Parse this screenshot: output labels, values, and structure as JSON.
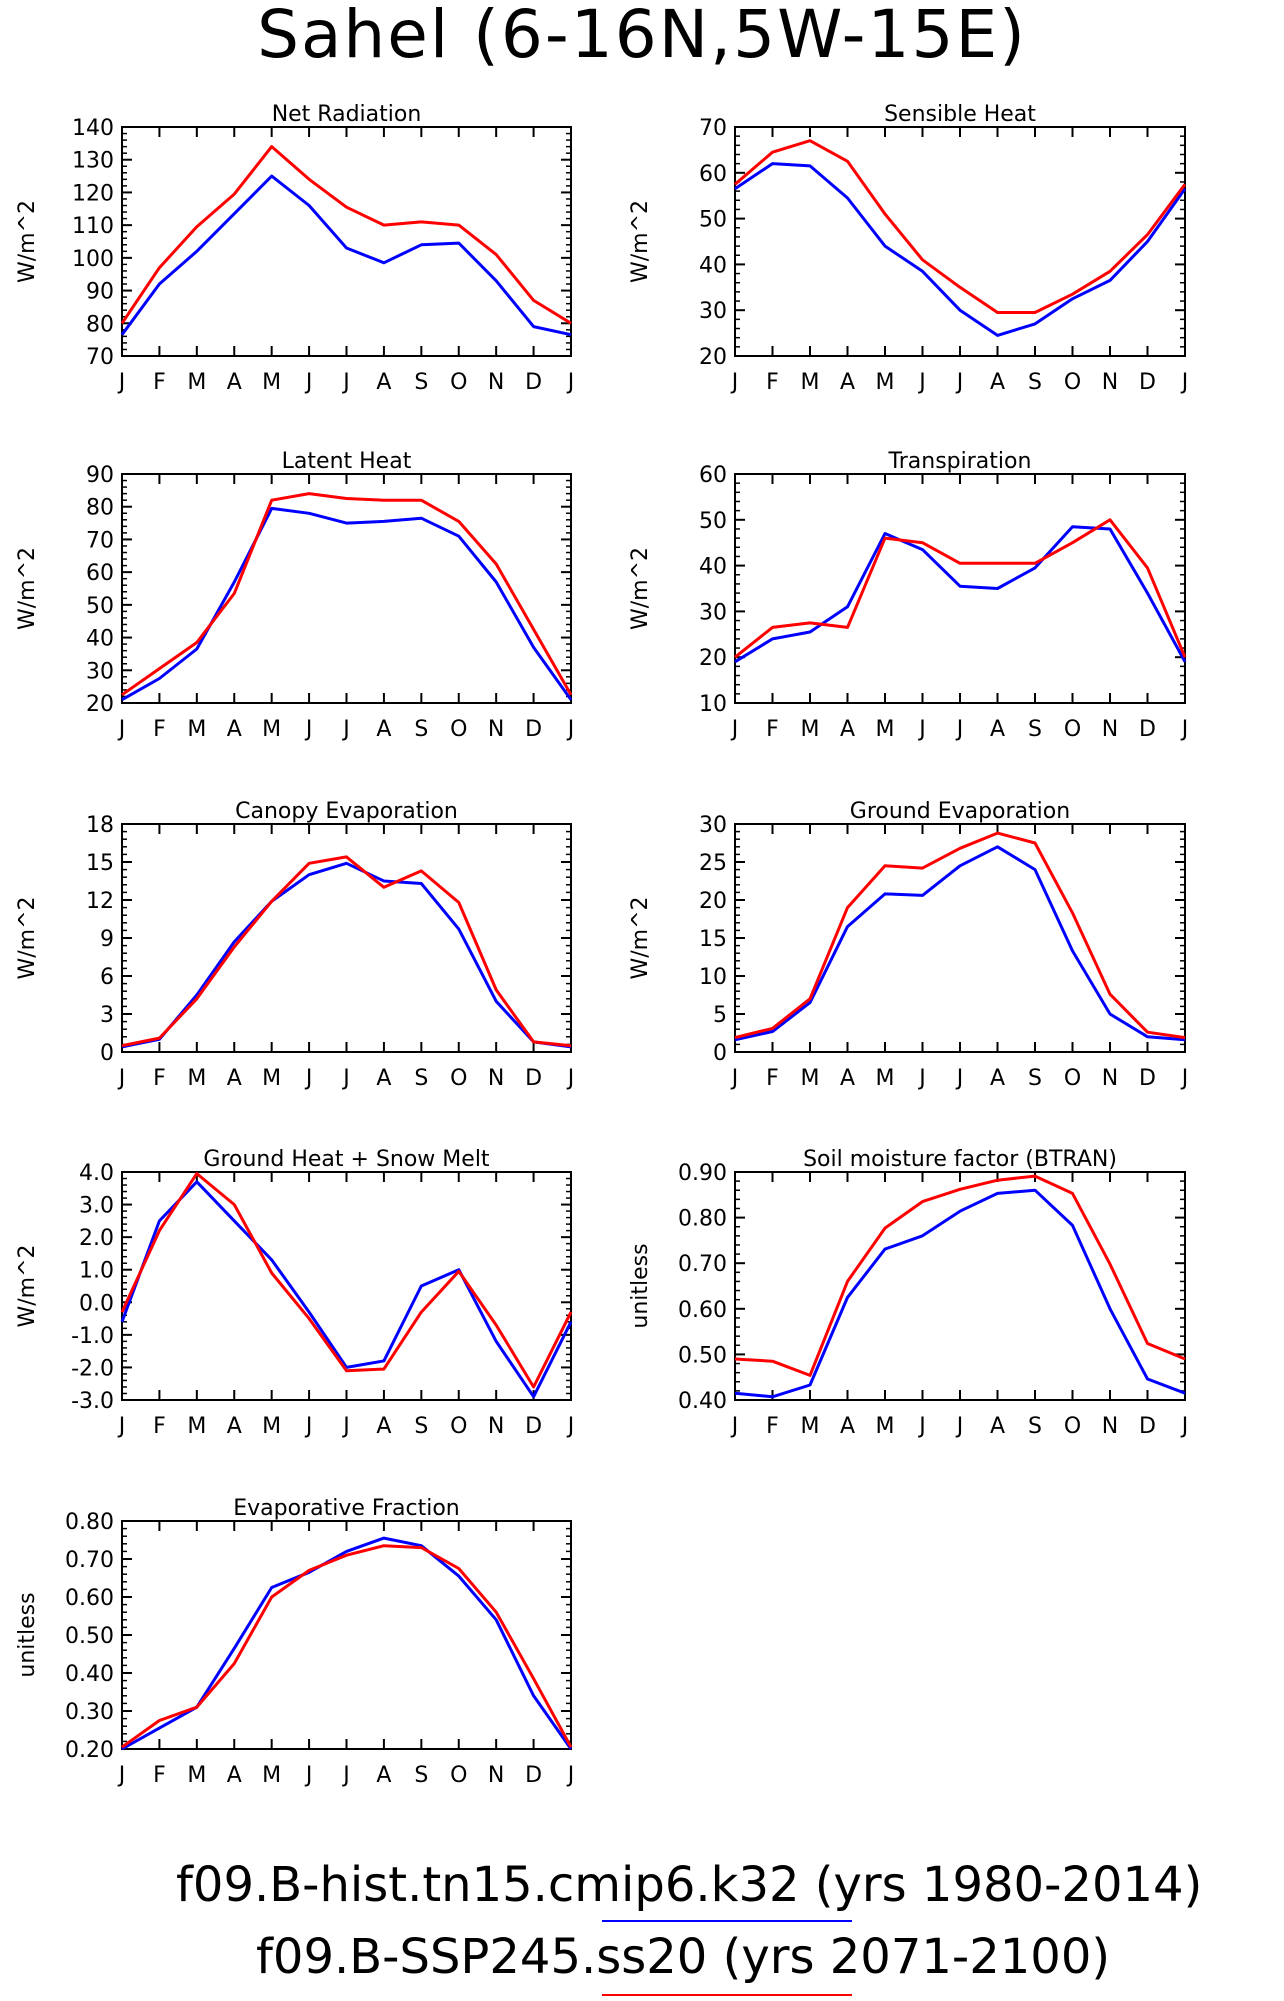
{
  "title": "Sahel (6-16N,5W-15E)",
  "months": [
    "J",
    "F",
    "M",
    "A",
    "M",
    "J",
    "J",
    "A",
    "S",
    "O",
    "N",
    "D",
    "J"
  ],
  "colors": {
    "hist": "#0000ff",
    "ssp": "#ff0000"
  },
  "legend": [
    {
      "name": "f09.B-hist.tn15.cmip6.k32",
      "period": "(yrs 1980-2014)",
      "color": "#0000ff"
    },
    {
      "name": "f09.B-SSP245.ss20",
      "period": "(yrs 2071-2100)",
      "color": "#ff0000"
    }
  ],
  "chart_data": [
    {
      "type": "line",
      "title": "Net Radiation",
      "ylabel": "W/m^2",
      "ylim": [
        70,
        140
      ],
      "yticks": [
        "70",
        "80",
        "90",
        "100",
        "110",
        "120",
        "130",
        "140"
      ],
      "series": [
        {
          "name": "f09.B-hist.tn15.cmip6.k32",
          "values": [
            76.5,
            92,
            102,
            113.5,
            125,
            116,
            103,
            98.5,
            104,
            104.5,
            93,
            79,
            76.5
          ]
        },
        {
          "name": "f09.B-SSP245.ss20",
          "values": [
            80,
            97,
            109.5,
            119.5,
            134,
            124,
            115.5,
            110,
            111,
            110,
            101,
            87,
            80
          ]
        }
      ]
    },
    {
      "type": "line",
      "title": "Sensible Heat",
      "ylabel": "W/m^2",
      "ylim": [
        20,
        70
      ],
      "yticks": [
        "20",
        "30",
        "40",
        "50",
        "60",
        "70"
      ],
      "series": [
        {
          "name": "f09.B-hist.tn15.cmip6.k32",
          "values": [
            56.5,
            62,
            61.5,
            54.5,
            44,
            38.5,
            30,
            24.5,
            27,
            32.5,
            36.5,
            45,
            56.5
          ]
        },
        {
          "name": "f09.B-SSP245.ss20",
          "values": [
            57.5,
            64.5,
            67,
            62.5,
            51,
            41,
            35,
            29.5,
            29.5,
            33.5,
            38.5,
            46.5,
            57.5
          ]
        }
      ]
    },
    {
      "type": "line",
      "title": "Latent Heat",
      "ylabel": "W/m^2",
      "ylim": [
        20,
        90
      ],
      "yticks": [
        "20",
        "30",
        "40",
        "50",
        "60",
        "70",
        "80",
        "90"
      ],
      "series": [
        {
          "name": "f09.B-hist.tn15.cmip6.k32",
          "values": [
            21,
            27.5,
            36.5,
            57,
            79.5,
            78,
            75,
            75.5,
            76.5,
            71,
            57,
            37,
            21
          ]
        },
        {
          "name": "f09.B-SSP245.ss20",
          "values": [
            22.5,
            30.5,
            38.5,
            53.5,
            82,
            84,
            82.5,
            82,
            82,
            75.5,
            62.5,
            42.5,
            22.5
          ]
        }
      ]
    },
    {
      "type": "line",
      "title": "Transpiration",
      "ylabel": "W/m^2",
      "ylim": [
        10,
        60
      ],
      "yticks": [
        "10",
        "20",
        "30",
        "40",
        "50",
        "60"
      ],
      "series": [
        {
          "name": "f09.B-hist.tn15.cmip6.k32",
          "values": [
            19,
            24,
            25.5,
            31,
            47,
            43.5,
            35.5,
            35,
            39.5,
            48.5,
            48,
            34,
            19
          ]
        },
        {
          "name": "f09.B-SSP245.ss20",
          "values": [
            20,
            26.5,
            27.5,
            26.5,
            46,
            45,
            40.5,
            40.5,
            40.5,
            45,
            50,
            39.5,
            20
          ]
        }
      ]
    },
    {
      "type": "line",
      "title": "Canopy Evaporation",
      "ylabel": "W/m^2",
      "ylim": [
        0,
        18
      ],
      "yticks": [
        "0",
        "3",
        "6",
        "9",
        "12",
        "15",
        "18"
      ],
      "series": [
        {
          "name": "f09.B-hist.tn15.cmip6.k32",
          "values": [
            0.4,
            1,
            4.5,
            8.7,
            11.9,
            14,
            14.9,
            13.5,
            13.3,
            9.7,
            4,
            0.8,
            0.4
          ]
        },
        {
          "name": "f09.B-SSP245.ss20",
          "values": [
            0.5,
            1.1,
            4.2,
            8.3,
            11.9,
            14.9,
            15.4,
            13,
            14.3,
            11.8,
            4.9,
            0.8,
            0.5
          ]
        }
      ]
    },
    {
      "type": "line",
      "title": "Ground Evaporation",
      "ylabel": "W/m^2",
      "ylim": [
        0,
        30
      ],
      "yticks": [
        "0",
        "5",
        "10",
        "15",
        "20",
        "25",
        "30"
      ],
      "series": [
        {
          "name": "f09.B-hist.tn15.cmip6.k32",
          "values": [
            1.6,
            2.7,
            6.5,
            16.5,
            20.8,
            20.6,
            24.5,
            27,
            24,
            13.3,
            5,
            2,
            1.6
          ]
        },
        {
          "name": "f09.B-SSP245.ss20",
          "values": [
            1.9,
            3.1,
            7,
            19,
            24.5,
            24.2,
            26.8,
            28.8,
            27.5,
            18.3,
            7.6,
            2.6,
            1.9
          ]
        }
      ]
    },
    {
      "type": "line",
      "title": "Ground Heat + Snow Melt",
      "ylabel": "W/m^2",
      "ylim": [
        -3,
        4
      ],
      "yticks": [
        "-3.0",
        "-2.0",
        "-1.0",
        "0.0",
        "1.0",
        "2.0",
        "3.0",
        "4.0"
      ],
      "series": [
        {
          "name": "f09.B-hist.tn15.cmip6.k32",
          "values": [
            -0.6,
            2.5,
            3.7,
            2.5,
            1.3,
            -0.3,
            -2,
            -1.8,
            0.5,
            1,
            -1.2,
            -2.9,
            -0.6
          ]
        },
        {
          "name": "f09.B-SSP245.ss20",
          "values": [
            -0.3,
            2.2,
            3.95,
            3,
            0.9,
            -0.5,
            -2.1,
            -2.05,
            -0.3,
            0.95,
            -0.7,
            -2.6,
            -0.3
          ]
        }
      ]
    },
    {
      "type": "line",
      "title": "Soil moisture factor (BTRAN)",
      "ylabel": "unitless",
      "ylim": [
        0.4,
        0.9
      ],
      "yticks": [
        "0.40",
        "0.50",
        "0.60",
        "0.70",
        "0.80",
        "0.90"
      ],
      "series": [
        {
          "name": "f09.B-hist.tn15.cmip6.k32",
          "values": [
            0.415,
            0.407,
            0.433,
            0.625,
            0.731,
            0.76,
            0.814,
            0.853,
            0.86,
            0.783,
            0.6,
            0.446,
            0.415
          ]
        },
        {
          "name": "f09.B-SSP245.ss20",
          "values": [
            0.49,
            0.485,
            0.454,
            0.66,
            0.777,
            0.835,
            0.862,
            0.882,
            0.891,
            0.853,
            0.698,
            0.524,
            0.49
          ]
        }
      ]
    },
    {
      "type": "line",
      "title": "Evaporative Fraction",
      "ylabel": "unitless",
      "ylim": [
        0.2,
        0.8
      ],
      "yticks": [
        "0.20",
        "0.30",
        "0.40",
        "0.50",
        "0.60",
        "0.70",
        "0.80"
      ],
      "series": [
        {
          "name": "f09.B-hist.tn15.cmip6.k32",
          "values": [
            0.2,
            0.255,
            0.31,
            0.465,
            0.625,
            0.665,
            0.72,
            0.755,
            0.735,
            0.655,
            0.54,
            0.34,
            0.2
          ]
        },
        {
          "name": "f09.B-SSP245.ss20",
          "values": [
            0.205,
            0.275,
            0.31,
            0.425,
            0.6,
            0.67,
            0.71,
            0.735,
            0.73,
            0.675,
            0.56,
            0.385,
            0.205
          ]
        }
      ]
    }
  ]
}
